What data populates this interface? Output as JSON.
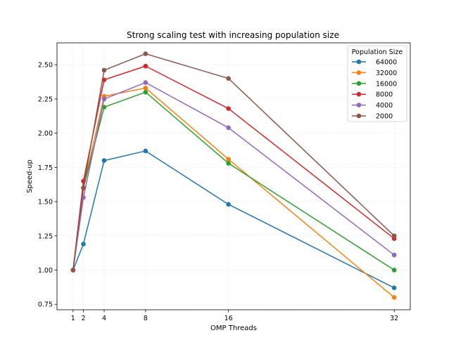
{
  "chart_data": {
    "type": "line",
    "title": "Strong scaling test with increasing population size",
    "xlabel": "OMP Threads",
    "ylabel": "Speed-up",
    "x": [
      1,
      2,
      4,
      8,
      16,
      32
    ],
    "xticks": [
      "1",
      "2",
      "4",
      "8",
      "16",
      "32"
    ],
    "yticks": [
      "0.75",
      "1.00",
      "1.25",
      "1.50",
      "1.75",
      "2.00",
      "2.25",
      "2.50"
    ],
    "xlim": [
      -0.55,
      33.55
    ],
    "ylim": [
      0.71,
      2.66
    ],
    "grid": true,
    "legend": {
      "title": "Population Size",
      "placement": "top-right"
    },
    "series": [
      {
        "name": "64000",
        "color": "#1f77b4",
        "values": [
          1.0,
          1.19,
          1.8,
          1.87,
          1.48,
          0.87
        ]
      },
      {
        "name": "32000",
        "color": "#ff7f0e",
        "values": [
          1.0,
          1.6,
          2.27,
          2.33,
          1.81,
          0.8
        ]
      },
      {
        "name": "16000",
        "color": "#2ca02c",
        "values": [
          1.0,
          1.6,
          2.19,
          2.3,
          1.78,
          1.0
        ]
      },
      {
        "name": "8000",
        "color": "#d62728",
        "values": [
          1.0,
          1.65,
          2.39,
          2.49,
          2.18,
          1.23
        ]
      },
      {
        "name": "4000",
        "color": "#9467bd",
        "values": [
          1.0,
          1.53,
          2.25,
          2.37,
          2.04,
          1.11
        ]
      },
      {
        "name": "2000",
        "color": "#8c564b",
        "values": [
          1.0,
          1.6,
          2.46,
          2.58,
          2.4,
          1.25
        ]
      }
    ]
  }
}
